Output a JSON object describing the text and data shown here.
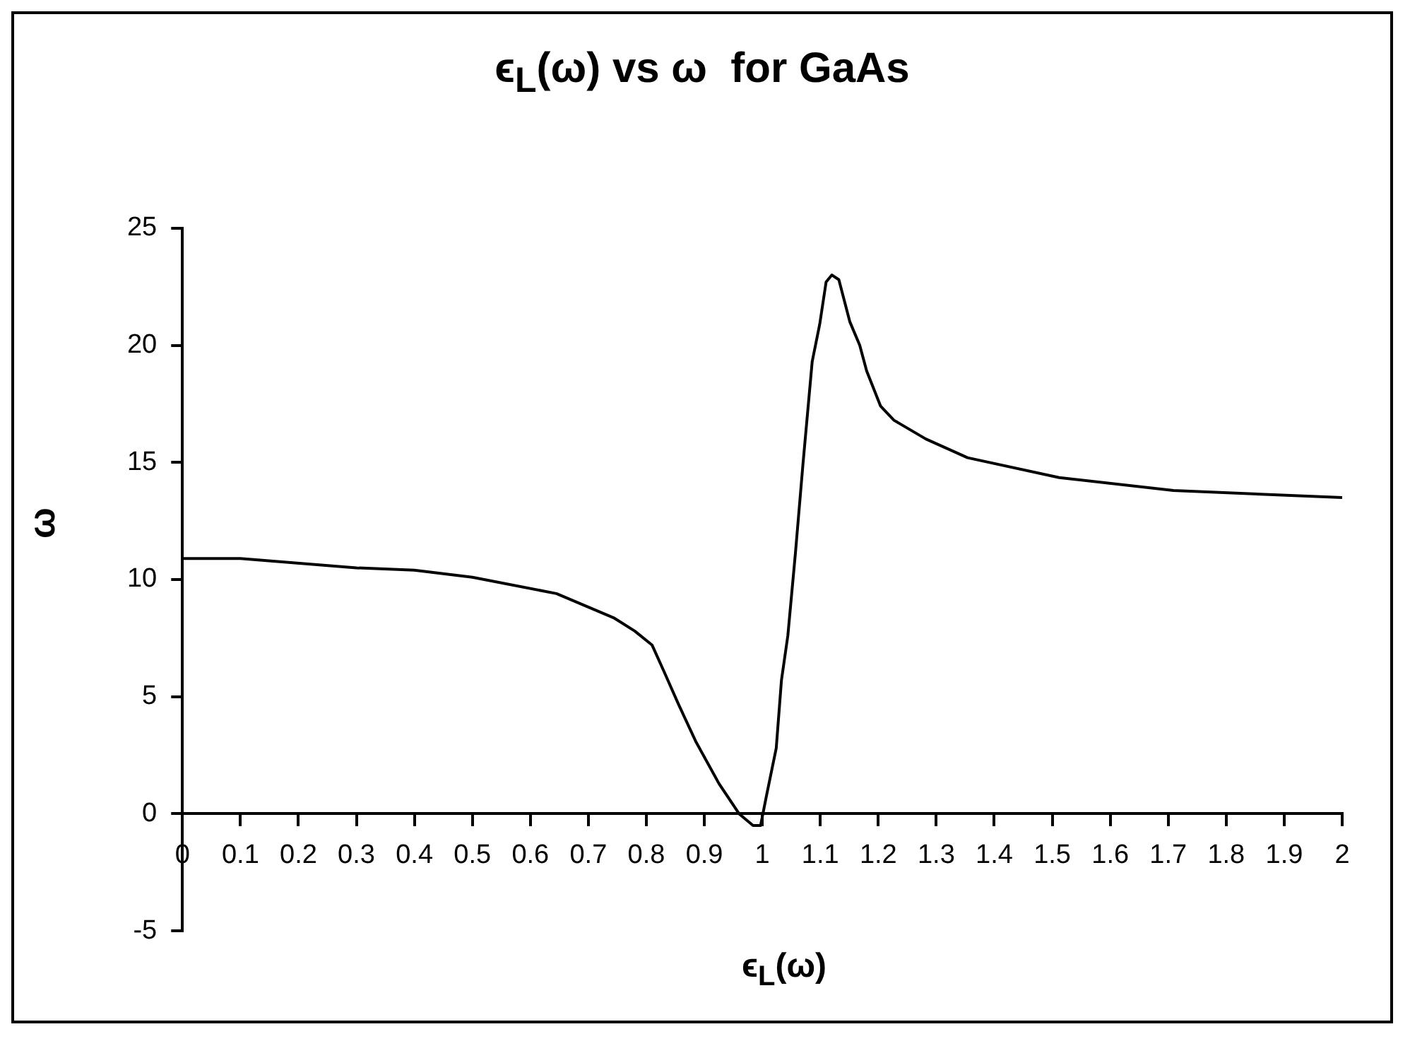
{
  "chart_data": {
    "type": "line",
    "title": "ϵ$_{L}$(ω) vs ω  for GaAs",
    "xlabel": "ϵ$_{L}$(ω)",
    "ylabel": "ω",
    "xlim": [
      0,
      2
    ],
    "xticks": [
      0,
      0.1,
      0.2,
      0.3,
      0.4,
      0.5,
      0.6,
      0.7,
      0.8,
      0.9,
      1,
      1.1,
      1.2,
      1.3,
      1.4,
      1.5,
      1.6,
      1.7,
      1.8,
      1.9,
      2
    ],
    "ylim": [
      -5,
      25
    ],
    "yticks": [
      -5,
      0,
      5,
      10,
      15,
      20,
      25
    ],
    "x": [
      0,
      0.1,
      0.3,
      0.4,
      0.5,
      0.645,
      0.745,
      0.78,
      0.81,
      0.83,
      0.855,
      0.885,
      0.925,
      0.96,
      0.984,
      0.997,
      1.007,
      1.024,
      1.033,
      1.044,
      1.057,
      1.07,
      1.086,
      1.099,
      1.11,
      1.12,
      1.132,
      1.151,
      1.168,
      1.18,
      1.204,
      1.227,
      1.282,
      1.354,
      1.512,
      1.709,
      2
    ],
    "series": [
      {
        "color": "#000000",
        "values": [
          10.9,
          10.9,
          10.5,
          10.4,
          10.1,
          9.4,
          8.35,
          7.8,
          7.2,
          6.1,
          4.7,
          3.1,
          1.3,
          0,
          -0.5,
          -0.5,
          0.75,
          2.8,
          5.7,
          7.6,
          11.1,
          14.9,
          19.3,
          20.9,
          22.7,
          23.0,
          22.8,
          21.0,
          20.0,
          18.9,
          17.4,
          16.8,
          16.0,
          15.2,
          14.35,
          13.8,
          13.5
        ]
      }
    ]
  }
}
